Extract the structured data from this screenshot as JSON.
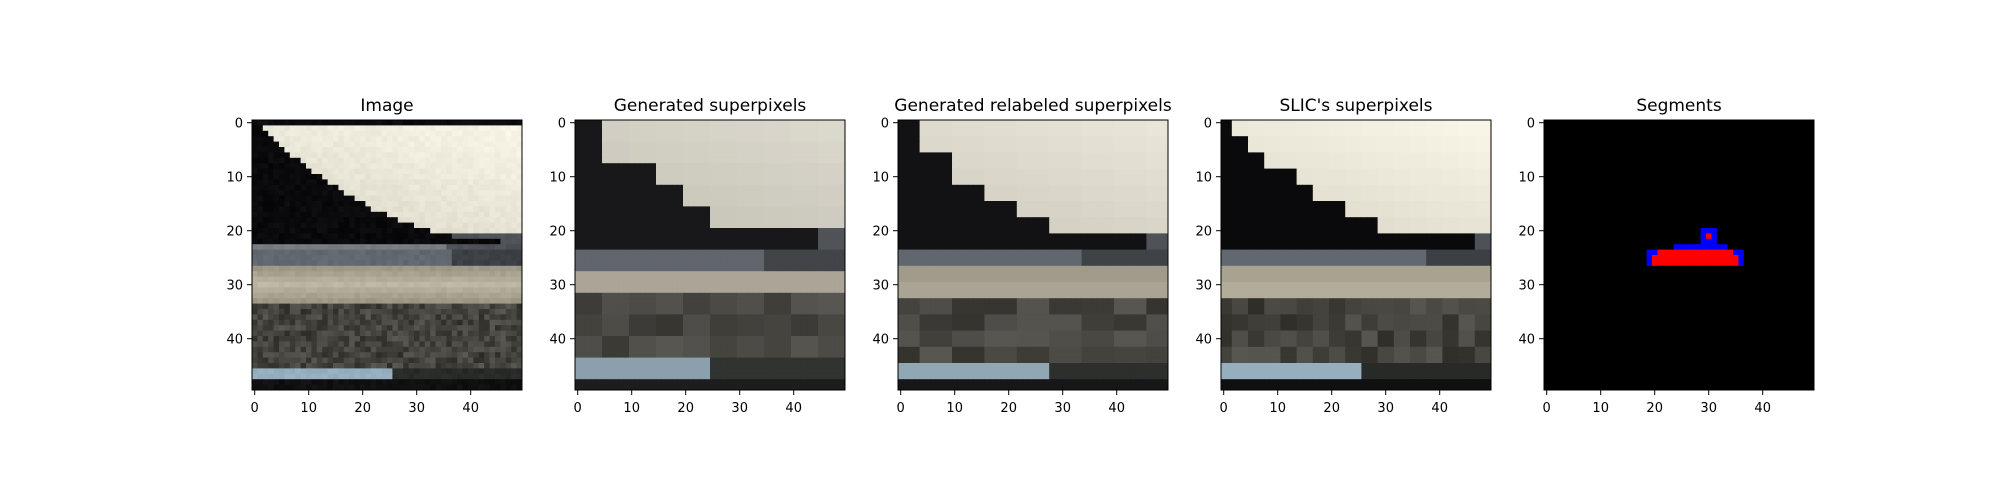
{
  "figure": {
    "panels": [
      {
        "title": "Image",
        "kind": "photo-scene"
      },
      {
        "title": "Generated superpixels",
        "kind": "superpixels-coarse"
      },
      {
        "title": "Generated relabeled superpixels",
        "kind": "superpixels-relabeled"
      },
      {
        "title": "SLIC's superpixels",
        "kind": "slic-superpixels"
      },
      {
        "title": "Segments",
        "kind": "segment-mask"
      }
    ],
    "x_ticks": [
      "0",
      "10",
      "20",
      "30",
      "40"
    ],
    "y_ticks": [
      "0",
      "10",
      "20",
      "30",
      "40"
    ],
    "image_size": [
      50,
      50
    ],
    "segment_colors": {
      "background": "#000000",
      "boat_body": "#ff0000",
      "boat_outline": "#0000ff"
    }
  }
}
